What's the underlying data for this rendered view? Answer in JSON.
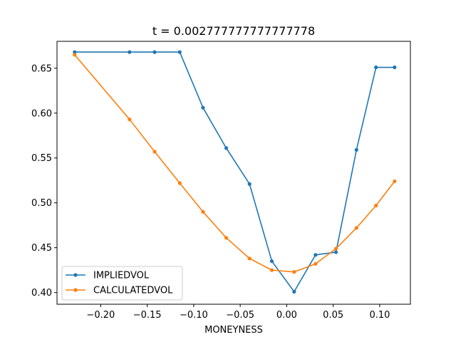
{
  "chart_data": {
    "type": "line",
    "title": "t = 0.002777777777777778",
    "xlabel": "MONEYNESS",
    "ylabel": "",
    "xlim": [
      -0.247,
      0.133
    ],
    "ylim": [
      0.387,
      0.68
    ],
    "x_ticks": [
      -0.2,
      -0.15,
      -0.1,
      -0.05,
      0.0,
      0.05,
      0.1
    ],
    "x_tick_labels": [
      "−0.20",
      "−0.15",
      "−0.10",
      "−0.05",
      "0.00",
      "0.05",
      "0.10"
    ],
    "y_ticks": [
      0.4,
      0.45,
      0.5,
      0.55,
      0.6,
      0.65
    ],
    "y_tick_labels": [
      "0.40",
      "0.45",
      "0.50",
      "0.55",
      "0.60",
      "0.65"
    ],
    "grid": false,
    "legend_position": "lower-left",
    "series": [
      {
        "name": "IMPLIEDVOL",
        "color": "#1f77b4",
        "x": [
          -0.228,
          -0.169,
          -0.142,
          -0.115,
          -0.09,
          -0.065,
          -0.04,
          -0.016,
          0.008,
          0.031,
          0.053,
          0.075,
          0.096,
          0.116
        ],
        "y": [
          0.668,
          0.668,
          0.668,
          0.668,
          0.606,
          0.561,
          0.521,
          0.435,
          0.401,
          0.442,
          0.445,
          0.559,
          0.651,
          0.651
        ]
      },
      {
        "name": "CALCULATEDVOL",
        "color": "#ff7f0e",
        "x": [
          -0.228,
          -0.169,
          -0.142,
          -0.115,
          -0.09,
          -0.065,
          -0.04,
          -0.016,
          0.008,
          0.031,
          0.053,
          0.075,
          0.096,
          0.116
        ],
        "y": [
          0.665,
          0.593,
          0.557,
          0.522,
          0.49,
          0.461,
          0.438,
          0.425,
          0.423,
          0.432,
          0.449,
          0.472,
          0.497,
          0.524
        ]
      }
    ]
  }
}
